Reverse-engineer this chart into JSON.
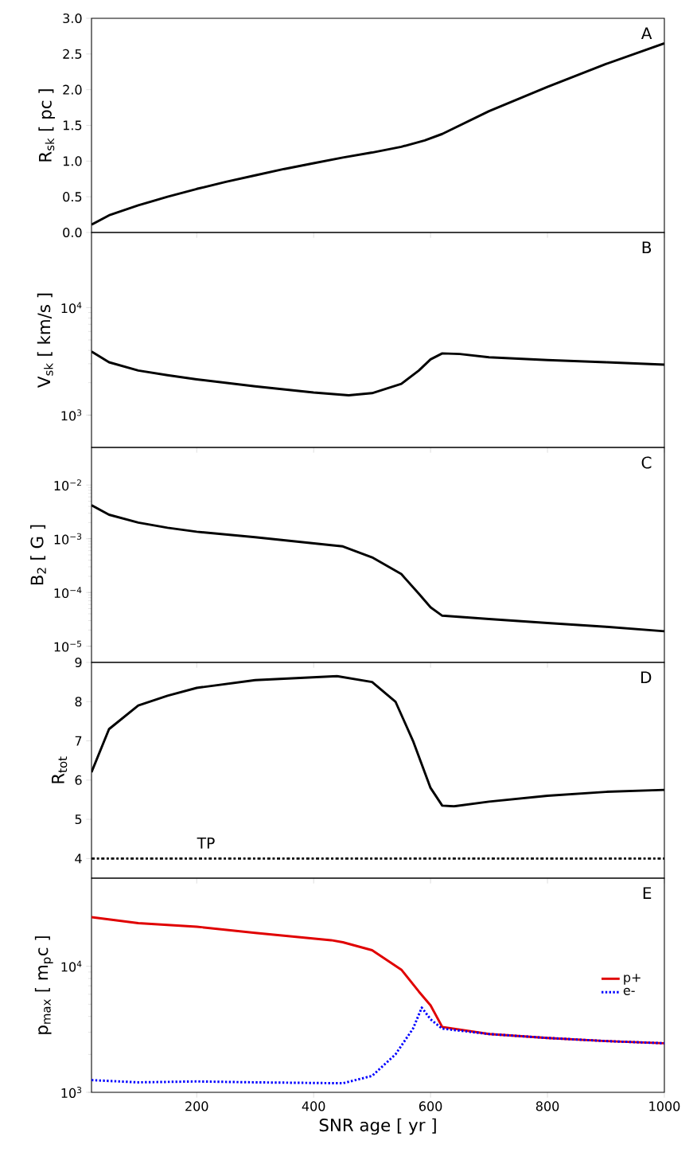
{
  "chart_data": [
    {
      "type": "line",
      "ylabel": "R$_{sk}$ [ pc ]",
      "annotations": [
        "A"
      ],
      "tick_labels": "y",
      "xlim": [
        20,
        1000
      ],
      "xticks": [
        200,
        400,
        600,
        800,
        1000
      ],
      "ylim": [
        0,
        3
      ],
      "yticks": [
        {
          "value": 0,
          "label": "0.0"
        },
        0.5,
        {
          "value": 1,
          "label": "1.0"
        },
        1.5,
        {
          "value": 2,
          "label": "2.0"
        },
        2.5,
        {
          "value": 3,
          "label": "3.0"
        }
      ],
      "x": [
        20,
        50,
        100,
        150,
        200,
        250,
        300,
        350,
        400,
        450,
        500,
        550,
        590,
        620,
        700,
        800,
        900,
        1000
      ],
      "series": [
        {
          "color": "#000000",
          "values": [
            0.11,
            0.24,
            0.38,
            0.5,
            0.61,
            0.71,
            0.8,
            0.89,
            0.97,
            1.05,
            1.12,
            1.2,
            1.29,
            1.38,
            1.7,
            2.04,
            2.36,
            2.65
          ]
        }
      ]
    },
    {
      "type": "line",
      "ylabel": "V$_{sk}$ [ km/s ]",
      "annotations": [
        "B"
      ],
      "tick_labels": "y",
      "log": "y",
      "xlim": [
        20,
        1000
      ],
      "xticks": [
        200,
        400,
        600,
        800,
        1000
      ],
      "ylim": [
        500,
        50000
      ],
      "yticks": [
        {
          "value": 1000,
          "label": "10$^{3}$"
        },
        {
          "value": 10000,
          "label": "10$^{4}$"
        }
      ],
      "x": [
        20,
        50,
        100,
        150,
        200,
        300,
        400,
        460,
        500,
        550,
        580,
        600,
        620,
        650,
        700,
        800,
        900,
        1000
      ],
      "series": [
        {
          "color": "#000000",
          "values": [
            3900,
            3100,
            2600,
            2350,
            2150,
            1850,
            1620,
            1530,
            1600,
            1950,
            2600,
            3300,
            3750,
            3700,
            3450,
            3250,
            3100,
            2950
          ]
        }
      ]
    },
    {
      "type": "line",
      "ylabel": "B$_{2}$ [ G ]",
      "annotations": [
        "C"
      ],
      "tick_labels": "y",
      "log": "y",
      "xlim": [
        20,
        1000
      ],
      "xticks": [
        200,
        400,
        600,
        800,
        1000
      ],
      "ylim": [
        5e-06,
        0.05
      ],
      "yticks": [
        {
          "value": 1e-05,
          "label": "10$^{−5}$"
        },
        {
          "value": 0.0001,
          "label": "10$^{−4}$"
        },
        {
          "value": 0.001,
          "label": "10$^{−3}$"
        },
        {
          "value": 0.01,
          "label": "10$^{−2}$"
        }
      ],
      "x": [
        20,
        50,
        100,
        150,
        200,
        300,
        430,
        450,
        500,
        550,
        580,
        600,
        620,
        700,
        800,
        900,
        1000
      ],
      "series": [
        {
          "color": "#000000",
          "values": [
            0.0042,
            0.0028,
            0.002,
            0.0016,
            0.00135,
            0.00107,
            0.00076,
            0.00072,
            0.00045,
            0.00022,
            9.5e-05,
            5.3e-05,
            3.7e-05,
            3.2e-05,
            2.7e-05,
            2.3e-05,
            1.9e-05
          ]
        }
      ]
    },
    {
      "type": "line",
      "ylabel": "R$_{tot}$",
      "annotations": [
        "D"
      ],
      "tick_labels": "y",
      "xlim": [
        20,
        1000
      ],
      "xticks": [
        200,
        400,
        600,
        800,
        1000
      ],
      "ylim": [
        3.5,
        9
      ],
      "yticks": [
        4,
        5,
        6,
        7,
        8,
        9
      ],
      "ref_lines": [
        {
          "axis": "y",
          "value": 4,
          "label": "TP",
          "color": "#000000",
          "line_style": "dashdot"
        }
      ],
      "x": [
        20,
        50,
        100,
        150,
        200,
        300,
        440,
        500,
        540,
        570,
        600,
        620,
        640,
        700,
        800,
        900,
        1000
      ],
      "series": [
        {
          "color": "#000000",
          "values": [
            6.2,
            7.3,
            7.9,
            8.15,
            8.35,
            8.55,
            8.65,
            8.5,
            8.0,
            7.0,
            5.8,
            5.35,
            5.33,
            5.45,
            5.6,
            5.7,
            5.75
          ]
        }
      ]
    },
    {
      "type": "line",
      "ylabel": "p$_{max}$ [ m$_{p}$c ]",
      "xlabel": "SNR age [ yr ]",
      "annotations": [
        "E"
      ],
      "legend": "right",
      "log": "y",
      "xlim": [
        20,
        1000
      ],
      "xticks": [
        200,
        400,
        600,
        800,
        1000
      ],
      "ylim": [
        1000,
        50000
      ],
      "yticks": [
        {
          "value": 1000,
          "label": "10$^{3}$"
        },
        {
          "value": 10000,
          "label": "10$^{4}$"
        }
      ],
      "series": [
        {
          "name": "p+",
          "color": "#e00000",
          "line_style": "solid",
          "x": [
            20,
            100,
            200,
            300,
            430,
            450,
            500,
            550,
            580,
            600,
            620,
            700,
            800,
            900,
            1000
          ],
          "values": [
            24500,
            22000,
            20600,
            18400,
            16100,
            15500,
            13400,
            9400,
            6300,
            4900,
            3300,
            2900,
            2700,
            2550,
            2450
          ]
        },
        {
          "name": "e-",
          "color": "#0000ff",
          "line_style": "dotted",
          "x": [
            20,
            100,
            200,
            300,
            450,
            500,
            540,
            570,
            585,
            600,
            620,
            700,
            800,
            900,
            1000
          ],
          "values": [
            1250,
            1200,
            1220,
            1200,
            1180,
            1350,
            2000,
            3200,
            4700,
            3800,
            3200,
            2900,
            2700,
            2550,
            2450
          ]
        }
      ]
    }
  ]
}
